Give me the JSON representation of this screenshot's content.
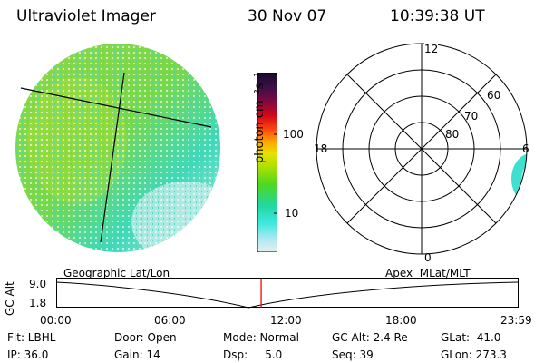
{
  "header": {
    "instrument": "Ultraviolet Imager",
    "date": "30 Nov 07",
    "time": "10:39:38 UT"
  },
  "colorbar": {
    "unit_label": "photon cm⁻²s⁻¹",
    "ticks": [
      "100",
      "10"
    ],
    "colors": [
      "#1a0a2a",
      "#2a1040",
      "#5a0840",
      "#a00820",
      "#e01010",
      "#ff4a10",
      "#ffa000",
      "#e8e000",
      "#a8e000",
      "#40d020",
      "#20d8a0",
      "#40e8e0",
      "#a0e8f0",
      "#e0f0f0"
    ]
  },
  "left_panel": {
    "name": "geographic-image",
    "colors": {
      "green": "#78d84a",
      "yellow": "#b8e030",
      "cyan": "#38d8c8",
      "pale": "#c8ecec"
    }
  },
  "polar_plot": {
    "labels": {
      "top": "12",
      "bottom": "0",
      "left": "18",
      "right": "6"
    },
    "rings": [
      "60",
      "70",
      "80"
    ]
  },
  "timeline": {
    "left_title": "Geographic Lat/Lon",
    "right_title": "Apex  MLat/MLT",
    "ylabel": "GC Alt",
    "y_ticks": [
      "9.0",
      "1.8"
    ],
    "x_ticks": [
      "00:00",
      "06:00",
      "12:00",
      "18:00",
      "23:59"
    ],
    "current_time_hours": 10.66,
    "marker_color": "#ff0000"
  },
  "info": {
    "flt": "Flt: LBHL",
    "door": "Door: Open",
    "mode": "Mode: Normal",
    "gc_alt": "GC Alt: 2.4 Re",
    "glat": "GLat:  41.0",
    "ip": "IP: 36.0",
    "gain": "Gain: 14",
    "dsp": "Dsp:     5.0",
    "seq": "Seq: 39",
    "glon": "GLon: 273.3"
  }
}
